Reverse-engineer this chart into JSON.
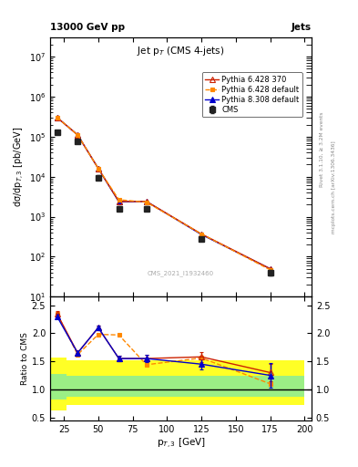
{
  "title_top": "13000 GeV pp",
  "title_right": "Jets",
  "plot_title": "Jet p$_T$ (CMS 4-jets)",
  "xlabel": "p$_{T,3}$ [GeV]",
  "ylabel_main": "dσ/dp$_{T,3}$ [pb/GeV]",
  "ylabel_ratio": "Ratio to CMS",
  "watermark": "CMS_2021_I1932460",
  "right_label": "Rivet 3.1.10, ≥ 3.2M events",
  "arxiv_label": "mcplots.cern.ch [arXiv:1306.3436]",
  "cms_x": [
    20,
    35,
    50,
    65,
    85,
    125,
    175
  ],
  "cms_y": [
    130000.0,
    75000.0,
    9500,
    1600,
    1600,
    280,
    40
  ],
  "cms_yerr": [
    15000.0,
    8000.0,
    1200,
    200,
    200,
    35,
    6
  ],
  "py6_370_x": [
    20,
    35,
    50,
    65,
    85,
    125,
    175
  ],
  "py6_370_y": [
    300000.0,
    110000.0,
    16000.0,
    2400,
    2400,
    370,
    50
  ],
  "py6_def_x": [
    20,
    35,
    50,
    65,
    85,
    125,
    175
  ],
  "py6_def_y": [
    300000.0,
    110000.0,
    16000.0,
    2650,
    2300,
    370,
    47
  ],
  "py8_def_x": [
    20,
    35,
    50,
    65,
    85,
    125,
    175
  ],
  "py8_def_y": [
    300000.0,
    110000.0,
    16000.0,
    2350,
    2400,
    358,
    50
  ],
  "ratio_py6_370_y": [
    2.35,
    1.65,
    2.1,
    1.55,
    1.55,
    1.58,
    1.3
  ],
  "ratio_py6_def_y": [
    2.35,
    1.62,
    1.98,
    1.97,
    1.44,
    1.56,
    1.1
  ],
  "ratio_py8_def_y": [
    2.3,
    1.65,
    2.1,
    1.55,
    1.55,
    1.45,
    1.25
  ],
  "ratio_py6_370_yerr": [
    0.04,
    0.04,
    0.04,
    0.05,
    0.07,
    0.09,
    0.15
  ],
  "ratio_py8_def_yerr": [
    0.04,
    0.04,
    0.04,
    0.05,
    0.07,
    0.09,
    0.22
  ],
  "band_x_edges": [
    15,
    27,
    42,
    57,
    77,
    107,
    157,
    200
  ],
  "band_yellow_low": [
    0.62,
    0.72,
    0.72,
    0.72,
    0.72,
    0.72,
    0.72
  ],
  "band_yellow_high": [
    1.56,
    1.52,
    1.52,
    1.52,
    1.52,
    1.52,
    1.52
  ],
  "band_green_low": [
    0.82,
    0.87,
    0.87,
    0.87,
    0.87,
    0.87,
    0.87
  ],
  "band_green_high": [
    1.28,
    1.24,
    1.24,
    1.24,
    1.24,
    1.24,
    1.24
  ],
  "color_cms": "#222222",
  "color_py6_370": "#cc2200",
  "color_py6_def": "#ff8800",
  "color_py8_def": "#0000cc",
  "xlim": [
    15,
    205
  ],
  "ylim_main": [
    10,
    30000000.0
  ],
  "ylim_ratio": [
    0.45,
    2.65
  ],
  "ratio_yticks": [
    0.5,
    1.0,
    1.5,
    2.0,
    2.5
  ]
}
